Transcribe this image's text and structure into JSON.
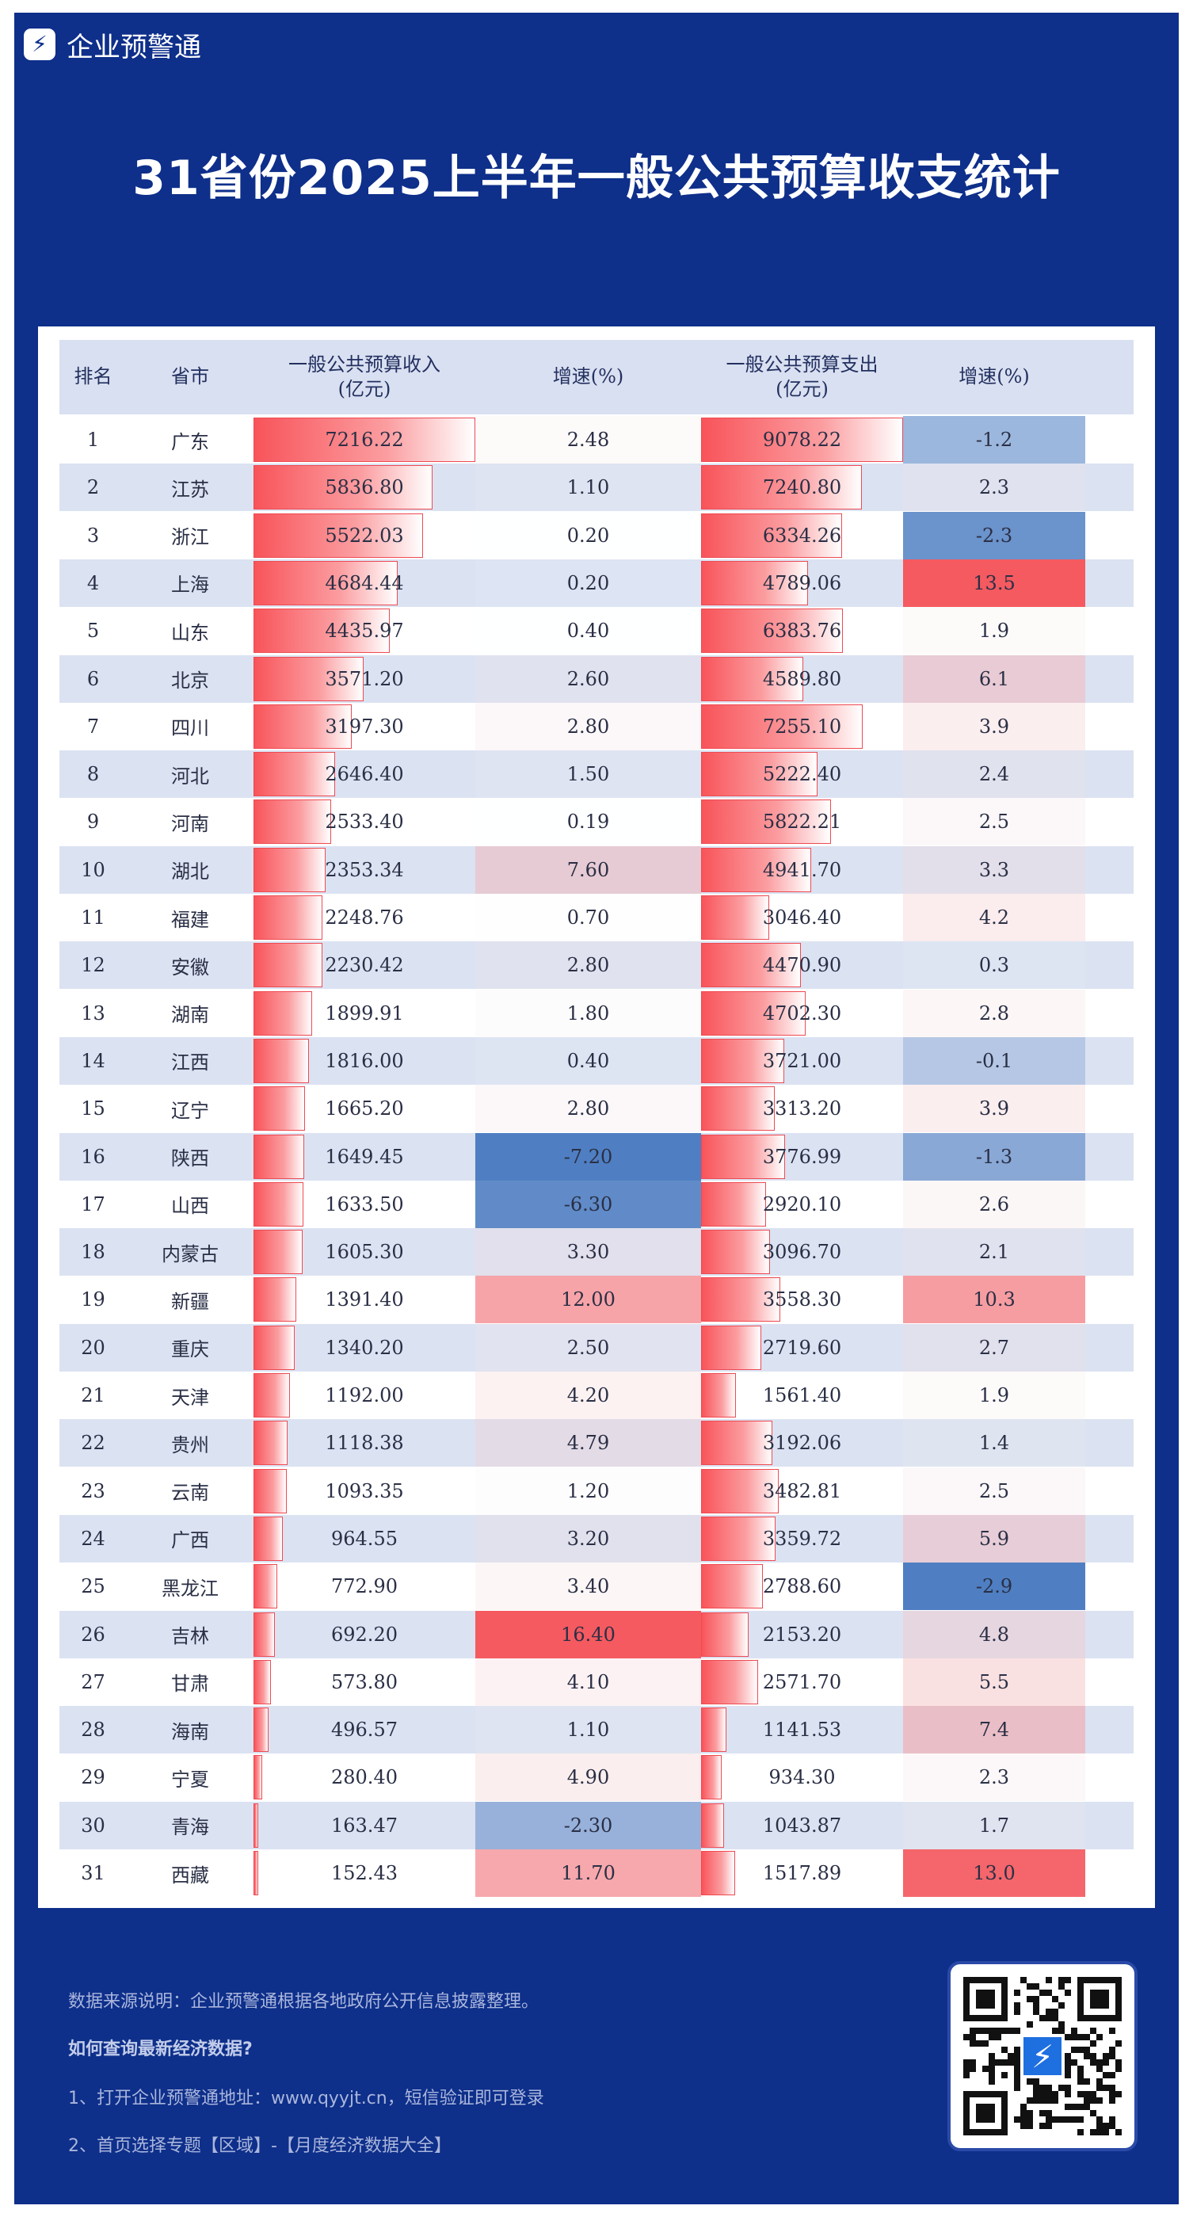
{
  "brand": {
    "name": "企业预警通",
    "logo_icon": "lightning-bolt-icon"
  },
  "title": "31省份2025上半年一般公共预算收支统计",
  "table": {
    "headers": {
      "rank": "排名",
      "province": "省市",
      "revenue": "一般公共预算收入\n(亿元)",
      "revenue_growth": "增速(%)",
      "expenditure": "一般公共预算支出\n(亿元)",
      "expenditure_growth": "增速(%)"
    },
    "rows": [
      {
        "rank": "1",
        "province": "广东",
        "revenue": "7216.22",
        "revenue_growth": "2.48",
        "expenditure": "9078.22",
        "expenditure_growth": "-1.2"
      },
      {
        "rank": "2",
        "province": "江苏",
        "revenue": "5836.80",
        "revenue_growth": "1.10",
        "expenditure": "7240.80",
        "expenditure_growth": "2.3"
      },
      {
        "rank": "3",
        "province": "浙江",
        "revenue": "5522.03",
        "revenue_growth": "0.20",
        "expenditure": "6334.26",
        "expenditure_growth": "-2.3"
      },
      {
        "rank": "4",
        "province": "上海",
        "revenue": "4684.44",
        "revenue_growth": "0.20",
        "expenditure": "4789.06",
        "expenditure_growth": "13.5"
      },
      {
        "rank": "5",
        "province": "山东",
        "revenue": "4435.97",
        "revenue_growth": "0.40",
        "expenditure": "6383.76",
        "expenditure_growth": "1.9"
      },
      {
        "rank": "6",
        "province": "北京",
        "revenue": "3571.20",
        "revenue_growth": "2.60",
        "expenditure": "4589.80",
        "expenditure_growth": "6.1"
      },
      {
        "rank": "7",
        "province": "四川",
        "revenue": "3197.30",
        "revenue_growth": "2.80",
        "expenditure": "7255.10",
        "expenditure_growth": "3.9"
      },
      {
        "rank": "8",
        "province": "河北",
        "revenue": "2646.40",
        "revenue_growth": "1.50",
        "expenditure": "5222.40",
        "expenditure_growth": "2.4"
      },
      {
        "rank": "9",
        "province": "河南",
        "revenue": "2533.40",
        "revenue_growth": "0.19",
        "expenditure": "5822.21",
        "expenditure_growth": "2.5"
      },
      {
        "rank": "10",
        "province": "湖北",
        "revenue": "2353.34",
        "revenue_growth": "7.60",
        "expenditure": "4941.70",
        "expenditure_growth": "3.3"
      },
      {
        "rank": "11",
        "province": "福建",
        "revenue": "2248.76",
        "revenue_growth": "0.70",
        "expenditure": "3046.40",
        "expenditure_growth": "4.2"
      },
      {
        "rank": "12",
        "province": "安徽",
        "revenue": "2230.42",
        "revenue_growth": "2.80",
        "expenditure": "4470.90",
        "expenditure_growth": "0.3"
      },
      {
        "rank": "13",
        "province": "湖南",
        "revenue": "1899.91",
        "revenue_growth": "1.80",
        "expenditure": "4702.30",
        "expenditure_growth": "2.8"
      },
      {
        "rank": "14",
        "province": "江西",
        "revenue": "1816.00",
        "revenue_growth": "0.40",
        "expenditure": "3721.00",
        "expenditure_growth": "-0.1"
      },
      {
        "rank": "15",
        "province": "辽宁",
        "revenue": "1665.20",
        "revenue_growth": "2.80",
        "expenditure": "3313.20",
        "expenditure_growth": "3.9"
      },
      {
        "rank": "16",
        "province": "陕西",
        "revenue": "1649.45",
        "revenue_growth": "-7.20",
        "expenditure": "3776.99",
        "expenditure_growth": "-1.3"
      },
      {
        "rank": "17",
        "province": "山西",
        "revenue": "1633.50",
        "revenue_growth": "-6.30",
        "expenditure": "2920.10",
        "expenditure_growth": "2.6"
      },
      {
        "rank": "18",
        "province": "内蒙古",
        "revenue": "1605.30",
        "revenue_growth": "3.30",
        "expenditure": "3096.70",
        "expenditure_growth": "2.1"
      },
      {
        "rank": "19",
        "province": "新疆",
        "revenue": "1391.40",
        "revenue_growth": "12.00",
        "expenditure": "3558.30",
        "expenditure_growth": "10.3"
      },
      {
        "rank": "20",
        "province": "重庆",
        "revenue": "1340.20",
        "revenue_growth": "2.50",
        "expenditure": "2719.60",
        "expenditure_growth": "2.7"
      },
      {
        "rank": "21",
        "province": "天津",
        "revenue": "1192.00",
        "revenue_growth": "4.20",
        "expenditure": "1561.40",
        "expenditure_growth": "1.9"
      },
      {
        "rank": "22",
        "province": "贵州",
        "revenue": "1118.38",
        "revenue_growth": "4.79",
        "expenditure": "3192.06",
        "expenditure_growth": "1.4"
      },
      {
        "rank": "23",
        "province": "云南",
        "revenue": "1093.35",
        "revenue_growth": "1.20",
        "expenditure": "3482.81",
        "expenditure_growth": "2.5"
      },
      {
        "rank": "24",
        "province": "广西",
        "revenue": "964.55",
        "revenue_growth": "3.20",
        "expenditure": "3359.72",
        "expenditure_growth": "5.9"
      },
      {
        "rank": "25",
        "province": "黑龙江",
        "revenue": "772.90",
        "revenue_growth": "3.40",
        "expenditure": "2788.60",
        "expenditure_growth": "-2.9"
      },
      {
        "rank": "26",
        "province": "吉林",
        "revenue": "692.20",
        "revenue_growth": "16.40",
        "expenditure": "2153.20",
        "expenditure_growth": "4.8"
      },
      {
        "rank": "27",
        "province": "甘肃",
        "revenue": "573.80",
        "revenue_growth": "4.10",
        "expenditure": "2571.70",
        "expenditure_growth": "5.5"
      },
      {
        "rank": "28",
        "province": "海南",
        "revenue": "496.57",
        "revenue_growth": "1.10",
        "expenditure": "1141.53",
        "expenditure_growth": "7.4"
      },
      {
        "rank": "29",
        "province": "宁夏",
        "revenue": "280.40",
        "revenue_growth": "4.90",
        "expenditure": "934.30",
        "expenditure_growth": "2.3"
      },
      {
        "rank": "30",
        "province": "青海",
        "revenue": "163.47",
        "revenue_growth": "-2.30",
        "expenditure": "1043.87",
        "expenditure_growth": "1.7"
      },
      {
        "rank": "31",
        "province": "西藏",
        "revenue": "152.43",
        "revenue_growth": "11.70",
        "expenditure": "1517.89",
        "expenditure_growth": "13.0"
      }
    ]
  },
  "colors": {
    "frame": "#0e2f8a",
    "bar_red": "#f8545a",
    "growth_positive": "#f4565c",
    "growth_negative": "#4f7fc2"
  },
  "footer": {
    "source": "数据来源说明：企业预警通根据各地政府公开信息披露整理。",
    "how_title": "如何查询最新经济数据?",
    "step1": "1、打开企业预警通地址：www.qyyjt.cn，短信验证即可登录",
    "step2": "2、首页选择专题【区域】-【月度经济数据大全】",
    "qr_icon": "qr-code-icon"
  }
}
